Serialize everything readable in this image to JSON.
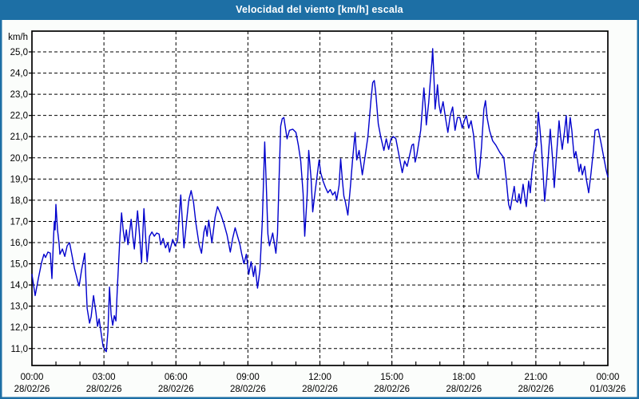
{
  "window": {
    "title": "Velocidad del viento [km/h] escala"
  },
  "colors": {
    "titlebar_bg": "#1d6fa5",
    "titlebar_text": "#ffffff",
    "page_bg": "#fbfdfb",
    "window_border": "#1d6fa5",
    "plot_bg": "#ffffff",
    "frame": "#000000",
    "grid": "#000000",
    "line": "#0000cd",
    "label": "#000000"
  },
  "chart_data": {
    "type": "line",
    "title": "Velocidad del viento [km/h] escala",
    "ylabel": "km/h",
    "xlabel": "",
    "grid": true,
    "legend": "none",
    "ylim": [
      10.2,
      25.98
    ],
    "xlim_minutes": [
      0,
      1440
    ],
    "x_minor_tick_minutes": 60,
    "y_ticks": [
      {
        "value": 25,
        "label": "25,0"
      },
      {
        "value": 24,
        "label": "24,0"
      },
      {
        "value": 23,
        "label": "23,0"
      },
      {
        "value": 22,
        "label": "22,0"
      },
      {
        "value": 21,
        "label": "21,0"
      },
      {
        "value": 20,
        "label": "20,0"
      },
      {
        "value": 19,
        "label": "19,0"
      },
      {
        "value": 18,
        "label": "18,0"
      },
      {
        "value": 17,
        "label": "17,0"
      },
      {
        "value": 16,
        "label": "16,0"
      },
      {
        "value": 15,
        "label": "15,0"
      },
      {
        "value": 14,
        "label": "14,0"
      },
      {
        "value": 13,
        "label": "13,0"
      },
      {
        "value": 12,
        "label": "12,0"
      },
      {
        "value": 11,
        "label": "11,0"
      }
    ],
    "x_ticks": [
      {
        "minutes": 0,
        "time": "00:00",
        "date": "28/02/26"
      },
      {
        "minutes": 180,
        "time": "03:00",
        "date": "28/02/26"
      },
      {
        "minutes": 360,
        "time": "06:00",
        "date": "28/02/26"
      },
      {
        "minutes": 540,
        "time": "09:00",
        "date": "28/02/26"
      },
      {
        "minutes": 720,
        "time": "12:00",
        "date": "28/02/26"
      },
      {
        "minutes": 900,
        "time": "15:00",
        "date": "28/02/26"
      },
      {
        "minutes": 1080,
        "time": "18:00",
        "date": "28/02/26"
      },
      {
        "minutes": 1260,
        "time": "21:00",
        "date": "28/02/26"
      },
      {
        "minutes": 1440,
        "time": "00:00",
        "date": "01/03/26"
      }
    ],
    "series": [
      {
        "name": "Velocidad del viento [km/h]",
        "points": [
          [
            0,
            14.5
          ],
          [
            4,
            14.0
          ],
          [
            8,
            13.5
          ],
          [
            16,
            14.3
          ],
          [
            24,
            15.05
          ],
          [
            30,
            15.45
          ],
          [
            34,
            15.3
          ],
          [
            40,
            15.55
          ],
          [
            46,
            15.5
          ],
          [
            48,
            14.9
          ],
          [
            50,
            14.3
          ],
          [
            54,
            16.2
          ],
          [
            56,
            17.0
          ],
          [
            58,
            16.6
          ],
          [
            60,
            17.8
          ],
          [
            64,
            16.6
          ],
          [
            68,
            15.95
          ],
          [
            70,
            15.45
          ],
          [
            76,
            15.7
          ],
          [
            82,
            15.35
          ],
          [
            88,
            15.85
          ],
          [
            94,
            16.0
          ],
          [
            100,
            15.4
          ],
          [
            106,
            14.8
          ],
          [
            114,
            14.2
          ],
          [
            118,
            13.95
          ],
          [
            124,
            14.7
          ],
          [
            130,
            15.3
          ],
          [
            132,
            15.5
          ],
          [
            138,
            12.9
          ],
          [
            144,
            12.2
          ],
          [
            148,
            12.5
          ],
          [
            154,
            13.5
          ],
          [
            160,
            12.7
          ],
          [
            164,
            12.05
          ],
          [
            168,
            12.4
          ],
          [
            174,
            11.6
          ],
          [
            178,
            11.1
          ],
          [
            182,
            10.95
          ],
          [
            186,
            10.85
          ],
          [
            190,
            11.8
          ],
          [
            194,
            13.9
          ],
          [
            198,
            12.6
          ],
          [
            202,
            12.1
          ],
          [
            206,
            12.55
          ],
          [
            210,
            12.3
          ],
          [
            214,
            14.0
          ],
          [
            220,
            16.3
          ],
          [
            224,
            17.4
          ],
          [
            228,
            16.6
          ],
          [
            232,
            16.05
          ],
          [
            236,
            16.6
          ],
          [
            240,
            15.9
          ],
          [
            248,
            17.1
          ],
          [
            252,
            16.3
          ],
          [
            256,
            15.7
          ],
          [
            264,
            17.5
          ],
          [
            268,
            16.6
          ],
          [
            274,
            15.05
          ],
          [
            280,
            17.6
          ],
          [
            288,
            15.1
          ],
          [
            294,
            16.3
          ],
          [
            300,
            16.5
          ],
          [
            306,
            16.3
          ],
          [
            312,
            16.45
          ],
          [
            318,
            16.4
          ],
          [
            322,
            15.9
          ],
          [
            328,
            16.2
          ],
          [
            334,
            15.75
          ],
          [
            340,
            16.0
          ],
          [
            344,
            15.55
          ],
          [
            352,
            16.15
          ],
          [
            358,
            15.85
          ],
          [
            364,
            16.1
          ],
          [
            368,
            17.2
          ],
          [
            372,
            18.25
          ],
          [
            376,
            17.0
          ],
          [
            380,
            15.75
          ],
          [
            386,
            16.9
          ],
          [
            392,
            18.0
          ],
          [
            398,
            18.45
          ],
          [
            404,
            17.9
          ],
          [
            410,
            16.9
          ],
          [
            418,
            15.9
          ],
          [
            424,
            15.5
          ],
          [
            430,
            16.5
          ],
          [
            434,
            16.8
          ],
          [
            438,
            16.3
          ],
          [
            442,
            17.05
          ],
          [
            450,
            16.0
          ],
          [
            458,
            17.2
          ],
          [
            464,
            17.7
          ],
          [
            472,
            17.35
          ],
          [
            480,
            16.9
          ],
          [
            488,
            16.35
          ],
          [
            496,
            15.55
          ],
          [
            502,
            16.2
          ],
          [
            508,
            16.7
          ],
          [
            514,
            16.3
          ],
          [
            520,
            15.9
          ],
          [
            524,
            15.5
          ],
          [
            530,
            15.0
          ],
          [
            536,
            15.45
          ],
          [
            542,
            14.5
          ],
          [
            548,
            15.1
          ],
          [
            554,
            14.4
          ],
          [
            558,
            14.9
          ],
          [
            564,
            13.85
          ],
          [
            570,
            14.7
          ],
          [
            576,
            17.0
          ],
          [
            582,
            20.75
          ],
          [
            586,
            18.7
          ],
          [
            590,
            16.4
          ],
          [
            594,
            15.85
          ],
          [
            602,
            16.45
          ],
          [
            610,
            15.5
          ],
          [
            614,
            16.4
          ],
          [
            618,
            19.0
          ],
          [
            622,
            21.5
          ],
          [
            626,
            21.85
          ],
          [
            630,
            21.9
          ],
          [
            634,
            21.4
          ],
          [
            638,
            20.9
          ],
          [
            644,
            21.3
          ],
          [
            652,
            21.35
          ],
          [
            660,
            21.2
          ],
          [
            666,
            20.6
          ],
          [
            672,
            19.85
          ],
          [
            678,
            18.3
          ],
          [
            682,
            16.3
          ],
          [
            688,
            18.2
          ],
          [
            692,
            20.35
          ],
          [
            698,
            19.0
          ],
          [
            702,
            17.45
          ],
          [
            708,
            18.4
          ],
          [
            714,
            19.3
          ],
          [
            718,
            19.9
          ],
          [
            722,
            19.3
          ],
          [
            728,
            18.9
          ],
          [
            734,
            18.6
          ],
          [
            740,
            18.35
          ],
          [
            746,
            18.5
          ],
          [
            752,
            18.25
          ],
          [
            758,
            18.4
          ],
          [
            762,
            18.0
          ],
          [
            768,
            18.7
          ],
          [
            772,
            19.95
          ],
          [
            776,
            19.0
          ],
          [
            780,
            18.2
          ],
          [
            784,
            17.9
          ],
          [
            790,
            17.3
          ],
          [
            796,
            18.6
          ],
          [
            802,
            20.0
          ],
          [
            808,
            21.2
          ],
          [
            812,
            19.9
          ],
          [
            818,
            20.35
          ],
          [
            826,
            19.2
          ],
          [
            834,
            20.2
          ],
          [
            840,
            21.0
          ],
          [
            844,
            21.9
          ],
          [
            848,
            22.8
          ],
          [
            852,
            23.55
          ],
          [
            856,
            23.65
          ],
          [
            860,
            23.0
          ],
          [
            866,
            21.6
          ],
          [
            872,
            21.0
          ],
          [
            880,
            20.35
          ],
          [
            886,
            20.9
          ],
          [
            892,
            20.4
          ],
          [
            898,
            20.9
          ],
          [
            904,
            21.0
          ],
          [
            910,
            20.9
          ],
          [
            916,
            20.3
          ],
          [
            920,
            19.9
          ],
          [
            926,
            19.3
          ],
          [
            932,
            19.85
          ],
          [
            938,
            19.6
          ],
          [
            944,
            20.1
          ],
          [
            950,
            20.6
          ],
          [
            954,
            20.65
          ],
          [
            958,
            19.8
          ],
          [
            962,
            20.1
          ],
          [
            972,
            21.3
          ],
          [
            976,
            22.3
          ],
          [
            980,
            23.3
          ],
          [
            984,
            22.3
          ],
          [
            986,
            21.55
          ],
          [
            992,
            22.6
          ],
          [
            996,
            23.6
          ],
          [
            1000,
            24.5
          ],
          [
            1002,
            25.15
          ],
          [
            1006,
            23.4
          ],
          [
            1008,
            22.3
          ],
          [
            1012,
            23.0
          ],
          [
            1014,
            23.45
          ],
          [
            1018,
            22.5
          ],
          [
            1022,
            22.1
          ],
          [
            1028,
            22.65
          ],
          [
            1034,
            21.9
          ],
          [
            1040,
            21.2
          ],
          [
            1046,
            22.0
          ],
          [
            1052,
            22.4
          ],
          [
            1058,
            21.3
          ],
          [
            1064,
            21.9
          ],
          [
            1070,
            21.9
          ],
          [
            1076,
            21.4
          ],
          [
            1080,
            21.7
          ],
          [
            1086,
            22.0
          ],
          [
            1092,
            21.4
          ],
          [
            1098,
            21.75
          ],
          [
            1104,
            21.1
          ],
          [
            1108,
            20.3
          ],
          [
            1112,
            19.3
          ],
          [
            1116,
            19.0
          ],
          [
            1120,
            19.6
          ],
          [
            1124,
            20.5
          ],
          [
            1130,
            22.3
          ],
          [
            1134,
            22.7
          ],
          [
            1138,
            21.9
          ],
          [
            1144,
            21.3
          ],
          [
            1152,
            20.8
          ],
          [
            1160,
            20.6
          ],
          [
            1170,
            20.25
          ],
          [
            1180,
            20.0
          ],
          [
            1186,
            19.0
          ],
          [
            1192,
            17.8
          ],
          [
            1196,
            17.55
          ],
          [
            1200,
            18.0
          ],
          [
            1206,
            18.65
          ],
          [
            1210,
            18.0
          ],
          [
            1214,
            17.9
          ],
          [
            1218,
            18.3
          ],
          [
            1222,
            17.85
          ],
          [
            1228,
            18.75
          ],
          [
            1232,
            18.2
          ],
          [
            1236,
            17.7
          ],
          [
            1242,
            18.9
          ],
          [
            1246,
            18.35
          ],
          [
            1250,
            19.3
          ],
          [
            1256,
            20.25
          ],
          [
            1262,
            20.6
          ],
          [
            1266,
            22.15
          ],
          [
            1270,
            21.4
          ],
          [
            1274,
            20.5
          ],
          [
            1278,
            19.3
          ],
          [
            1282,
            17.95
          ],
          [
            1288,
            19.2
          ],
          [
            1292,
            20.3
          ],
          [
            1296,
            21.35
          ],
          [
            1302,
            19.9
          ],
          [
            1306,
            18.6
          ],
          [
            1312,
            20.2
          ],
          [
            1318,
            21.75
          ],
          [
            1322,
            21.0
          ],
          [
            1326,
            20.4
          ],
          [
            1332,
            21.3
          ],
          [
            1336,
            22.0
          ],
          [
            1340,
            20.7
          ],
          [
            1346,
            21.9
          ],
          [
            1350,
            21.3
          ],
          [
            1356,
            20.0
          ],
          [
            1360,
            20.3
          ],
          [
            1364,
            19.9
          ],
          [
            1368,
            19.35
          ],
          [
            1372,
            19.7
          ],
          [
            1376,
            19.2
          ],
          [
            1382,
            19.6
          ],
          [
            1386,
            19.0
          ],
          [
            1392,
            18.35
          ],
          [
            1398,
            19.3
          ],
          [
            1404,
            20.4
          ],
          [
            1408,
            21.3
          ],
          [
            1416,
            21.35
          ],
          [
            1424,
            20.6
          ],
          [
            1432,
            19.8
          ],
          [
            1436,
            19.4
          ],
          [
            1440,
            19.1
          ]
        ]
      }
    ]
  }
}
